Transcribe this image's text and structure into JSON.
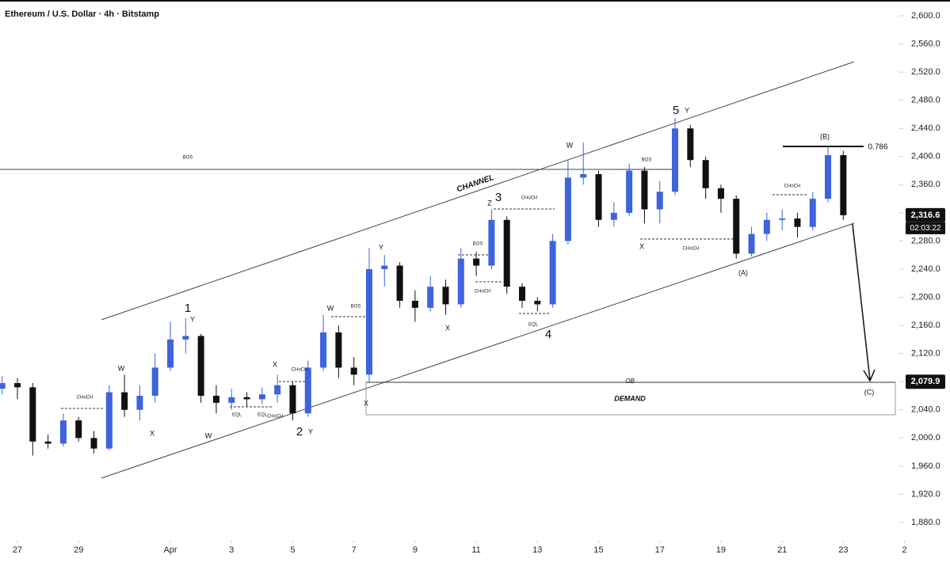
{
  "chart_data": {
    "type": "candlestick",
    "title": "Ethereum / U.S. Dollar · 4h · Bitstamp",
    "up_color": "#3d63dd",
    "down_color": "#111111",
    "x": [
      -0.5,
      0,
      0.5,
      1,
      1.5,
      2,
      2.5,
      3,
      3.5,
      4,
      4.5,
      5,
      5.5,
      6,
      6.5,
      7,
      7.5,
      8,
      8.5,
      9,
      9.5,
      10,
      10.5,
      11,
      11.5,
      12,
      12.5,
      13,
      13.5,
      14,
      14.5,
      15,
      15.5,
      16,
      16.5,
      17,
      17.5,
      18,
      18.5,
      19,
      19.5,
      20,
      20.5,
      21,
      21.5,
      22,
      22.5,
      23,
      23.5,
      24,
      24.5,
      25,
      25.5,
      26,
      26.5,
      27
    ],
    "open": [
      2070,
      2078,
      2072,
      1995,
      1992,
      2025,
      2000,
      1985,
      2065,
      2040,
      2060,
      2100,
      2140,
      2145,
      2060,
      2050,
      2058,
      2055,
      2062,
      2075,
      2035,
      2100,
      2150,
      2100,
      2090,
      2240,
      2245,
      2195,
      2185,
      2215,
      2190,
      2255,
      2245,
      2310,
      2215,
      2195,
      2190,
      2280,
      2370,
      2375,
      2310,
      2320,
      2380,
      2325,
      2350,
      2440,
      2395,
      2355,
      2340,
      2262,
      2290,
      2310,
      2312,
      2300,
      2340,
      2402
    ],
    "high": [
      2088,
      2085,
      2078,
      2005,
      2035,
      2030,
      2010,
      2075,
      2090,
      2075,
      2120,
      2165,
      2170,
      2148,
      2075,
      2070,
      2065,
      2072,
      2090,
      2080,
      2110,
      2175,
      2160,
      2115,
      2270,
      2260,
      2250,
      2210,
      2230,
      2225,
      2270,
      2265,
      2325,
      2315,
      2220,
      2200,
      2290,
      2395,
      2420,
      2380,
      2335,
      2390,
      2385,
      2365,
      2455,
      2445,
      2400,
      2360,
      2345,
      2300,
      2320,
      2325,
      2320,
      2350,
      2415,
      2408
    ],
    "low": [
      2062,
      2055,
      1975,
      1985,
      1988,
      1995,
      1978,
      1982,
      2030,
      2025,
      2050,
      2095,
      2120,
      2050,
      2035,
      2040,
      2045,
      2048,
      2050,
      2025,
      2030,
      2095,
      2085,
      2075,
      2078,
      2215,
      2185,
      2165,
      2180,
      2175,
      2185,
      2230,
      2240,
      2205,
      2185,
      2180,
      2185,
      2275,
      2360,
      2300,
      2300,
      2315,
      2305,
      2305,
      2345,
      2385,
      2340,
      2320,
      2255,
      2258,
      2280,
      2295,
      2285,
      2295,
      2335,
      2310
    ],
    "close": [
      2078,
      2072,
      1995,
      1992,
      2025,
      2000,
      1985,
      2065,
      2040,
      2060,
      2100,
      2140,
      2145,
      2060,
      2050,
      2058,
      2055,
      2062,
      2075,
      2035,
      2100,
      2150,
      2100,
      2090,
      2240,
      2245,
      2195,
      2185,
      2215,
      2190,
      2255,
      2245,
      2310,
      2215,
      2195,
      2190,
      2280,
      2370,
      2375,
      2310,
      2320,
      2380,
      2325,
      2350,
      2440,
      2395,
      2355,
      2340,
      2262,
      2290,
      2310,
      2312,
      2300,
      2340,
      2402,
      2316.6
    ],
    "xlim": [
      -0.57,
      28.83
    ],
    "ylim": [
      1857.5,
      2622.5
    ],
    "xticks": [
      {
        "value": 0,
        "label": "27"
      },
      {
        "value": 2,
        "label": "29"
      },
      {
        "value": 5,
        "label": "Apr"
      },
      {
        "value": 7,
        "label": "3"
      },
      {
        "value": 9,
        "label": "5"
      },
      {
        "value": 11,
        "label": "7"
      },
      {
        "value": 13,
        "label": "9"
      },
      {
        "value": 15,
        "label": "11"
      },
      {
        "value": 17,
        "label": "13"
      },
      {
        "value": 19,
        "label": "15"
      },
      {
        "value": 21,
        "label": "17"
      },
      {
        "value": 23,
        "label": "19"
      },
      {
        "value": 25,
        "label": "21"
      },
      {
        "value": 27,
        "label": "23"
      },
      {
        "value": 29,
        "label": "2"
      }
    ],
    "yticks": [
      {
        "value": 2600,
        "label": "2,600.0"
      },
      {
        "value": 2560,
        "label": "2,560.0"
      },
      {
        "value": 2520,
        "label": "2,520.0"
      },
      {
        "value": 2480,
        "label": "2,480.0"
      },
      {
        "value": 2440,
        "label": "2,440.0"
      },
      {
        "value": 2400,
        "label": "2,400.0"
      },
      {
        "value": 2360,
        "label": "2,360.0"
      },
      {
        "value": 2320,
        "label": "2,320.0"
      },
      {
        "value": 2280,
        "label": "2,280.0"
      },
      {
        "value": 2240,
        "label": "2,240.0"
      },
      {
        "value": 2200,
        "label": "2,200.0"
      },
      {
        "value": 2160,
        "label": "2,160.0"
      },
      {
        "value": 2120,
        "label": "2,120.0"
      },
      {
        "value": 2080,
        "label": "2,080.0"
      },
      {
        "value": 2040,
        "label": "2,040.0"
      },
      {
        "value": 2000,
        "label": "2,000.0"
      },
      {
        "value": 1960,
        "label": "1,960.0"
      },
      {
        "value": 1920,
        "label": "1,920.0"
      },
      {
        "value": 1880,
        "label": "1,880.0"
      }
    ],
    "price_labels": [
      {
        "value": 2316.6,
        "label": "2,316.6"
      },
      {
        "value": 2079.9,
        "label": "2,079.9"
      }
    ],
    "countdown": "02:03:22",
    "annotations": [
      "BOS",
      "CHANNEL",
      "1",
      "Y",
      "W",
      "X",
      "W",
      "CHoCH",
      "EQL",
      "X",
      "CHoCH",
      "EQL",
      "CHoCH",
      "2",
      "Y",
      "W",
      "BOS",
      "X",
      "Y",
      "X",
      "BOS",
      "CHoCH",
      "Z",
      "3",
      "CHoCH",
      "EQL",
      "4",
      "W",
      "BOS",
      "X",
      "CHoCH",
      "5",
      "Y",
      "CHoCH",
      "(A)",
      "(B)",
      "0.786",
      "OB",
      "DEMAND",
      "(C)"
    ]
  }
}
